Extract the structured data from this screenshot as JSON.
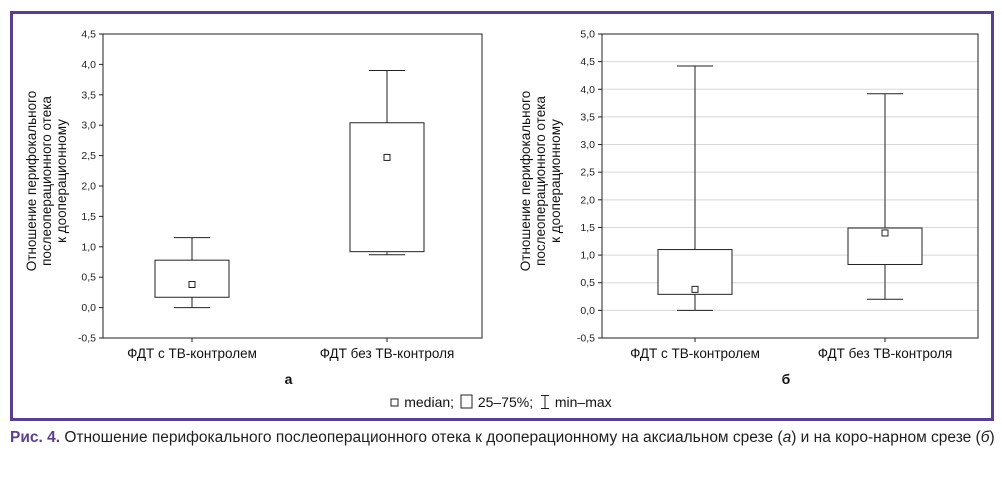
{
  "chart_data": [
    {
      "type": "box",
      "panel_label": "а",
      "ylabel": "Отношение перифокального послеоперационного отека к дооперационному",
      "ylabel_lines": [
        "Отношение перифокального",
        "послеоперационного отека",
        "к дооперационному"
      ],
      "ylim": [
        -0.5,
        4.5
      ],
      "yticks": [
        "-0,5",
        "0,0",
        "0,5",
        "1,0",
        "1,5",
        "2,0",
        "2,5",
        "3,0",
        "3,5",
        "4,0",
        "4,5"
      ],
      "yticks_values": [
        -0.5,
        0,
        0.5,
        1,
        1.5,
        2,
        2.5,
        3,
        3.5,
        4,
        4.5
      ],
      "grid": false,
      "categories": [
        "ФДТ с ТВ-контролем",
        "ФДТ без ТВ-контроля"
      ],
      "series": [
        {
          "min": 0.0,
          "q1": 0.17,
          "median": 0.38,
          "q3": 0.78,
          "max": 1.15
        },
        {
          "min": 0.87,
          "q1": 0.92,
          "median": 2.47,
          "q3": 3.04,
          "max": 3.9
        }
      ]
    },
    {
      "type": "box",
      "panel_label": "б",
      "ylabel": "Отношение перифокального послеоперационного отека к дооперационному",
      "ylabel_lines": [
        "Отношение перифокального",
        "послеоперационного отека",
        "к дооперационному"
      ],
      "ylim": [
        -0.5,
        5.0
      ],
      "yticks": [
        "-0,5",
        "0,0",
        "0,5",
        "1,0",
        "1,5",
        "2,0",
        "2,5",
        "3,0",
        "3,5",
        "4,0",
        "4,5",
        "5,0"
      ],
      "yticks_values": [
        -0.5,
        0,
        0.5,
        1,
        1.5,
        2,
        2.5,
        3,
        3.5,
        4,
        4.5,
        5
      ],
      "grid": true,
      "categories": [
        "ФДТ с ТВ-контролем",
        "ФДТ без ТВ-контроля"
      ],
      "series": [
        {
          "min": 0.0,
          "q1": 0.29,
          "median": 0.38,
          "q3": 1.1,
          "max": 4.42
        },
        {
          "min": 0.2,
          "q1": 0.83,
          "median": 1.4,
          "q3": 1.49,
          "max": 3.92
        }
      ]
    }
  ],
  "legend": {
    "median": "median;",
    "box": "25–75%;",
    "whisker": "min–max"
  },
  "caption": {
    "label": "Рис. 4.",
    "text_1": " Отношение перифокального послеоперационного отека к дооперационному на аксиальном срезе (",
    "a": "а",
    "text_2": ") и на коро-нарном срезе (",
    "b": "б",
    "text_3": ")"
  },
  "colors": {
    "frame": "#5b3f8c",
    "line": "#222222",
    "grid": "#d8d8d8"
  }
}
